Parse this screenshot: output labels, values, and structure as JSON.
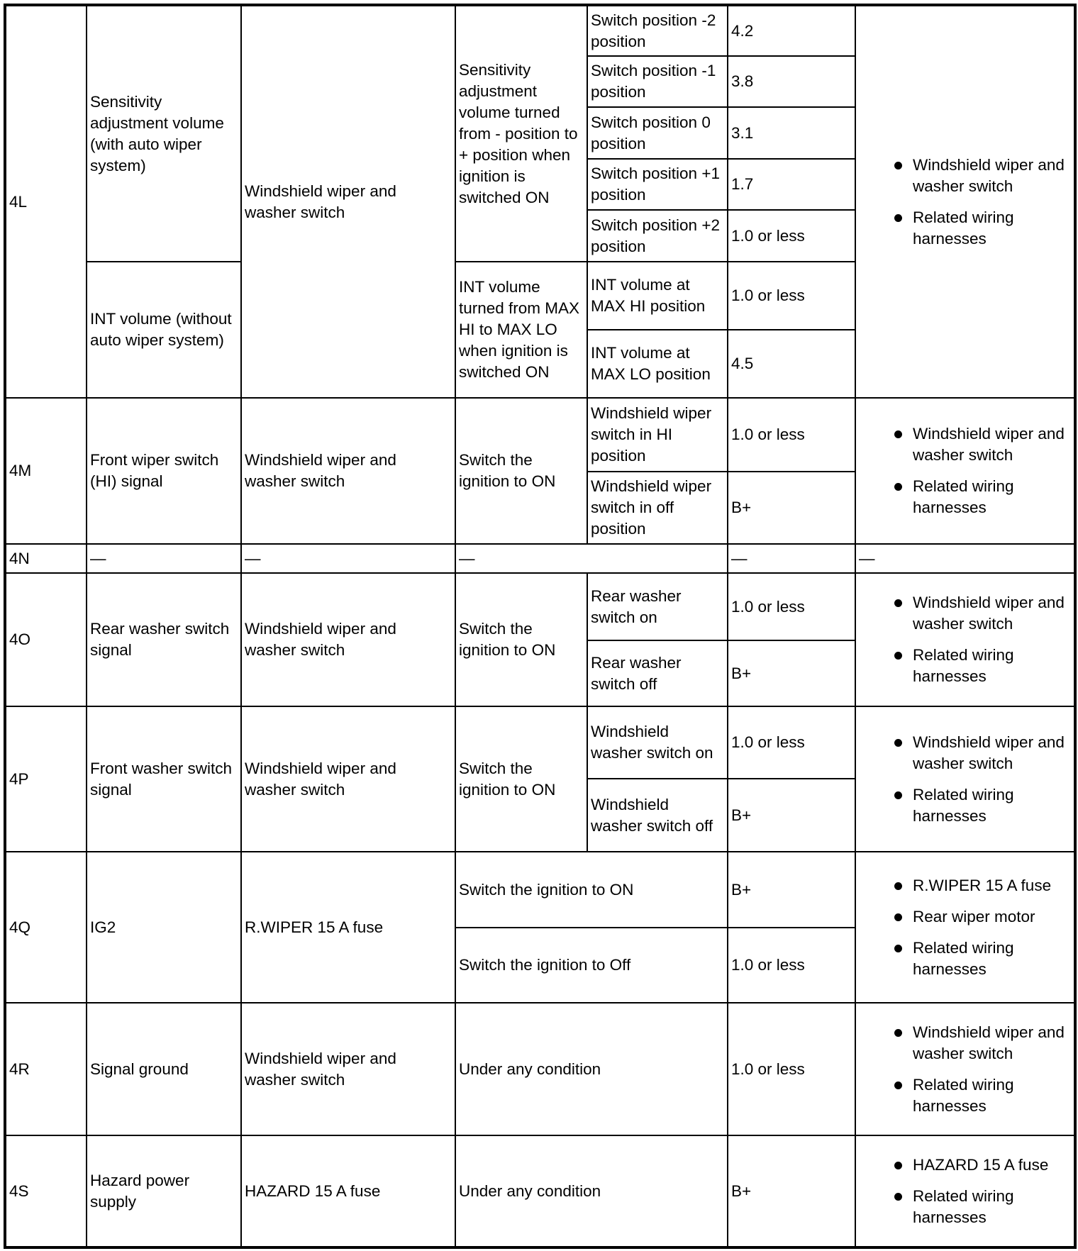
{
  "r4L": {
    "terminal": "4L",
    "item_a": "Sensitivity adjustment volume (with auto wiper system)",
    "item_b": "INT volume (without auto wiper system)",
    "connect": "Windshield wiper and washer switch",
    "cond_a": "Sensitivity adjustment volume turned from - position to + position when ignition is switched ON",
    "sub_a": [
      {
        "c": "Switch position -2 position",
        "v": "4.2"
      },
      {
        "c": "Switch position -1 position",
        "v": "3.8"
      },
      {
        "c": "Switch position 0 position",
        "v": "3.1"
      },
      {
        "c": "Switch position +1 position",
        "v": "1.7"
      },
      {
        "c": "Switch position +2 position",
        "v": "1.0 or less"
      }
    ],
    "cond_b": "INT volume turned from MAX HI to MAX LO when ignition is switched ON",
    "sub_b": [
      {
        "c": "INT volume at MAX HI position",
        "v": "1.0 or less"
      },
      {
        "c": "INT volume at MAX LO position",
        "v": "4.5"
      }
    ],
    "insp": [
      "Windshield wiper and washer switch",
      "Related wiring harnesses"
    ]
  },
  "r4M": {
    "terminal": "4M",
    "item": "Front wiper switch (HI) signal",
    "connect": "Windshield wiper and washer switch",
    "cond": "Switch the ignition to ON",
    "sub": [
      {
        "c": "Windshield wiper switch in HI position",
        "v": "1.0 or less"
      },
      {
        "c": "Windshield wiper switch in off position",
        "v": "B+"
      }
    ],
    "insp": [
      "Windshield wiper and washer switch",
      "Related wiring harnesses"
    ]
  },
  "r4N": {
    "terminal": "4N",
    "dash": "—"
  },
  "r4O": {
    "terminal": "4O",
    "item": "Rear washer switch signal",
    "connect": "Windshield wiper and washer switch",
    "cond": "Switch the ignition to ON",
    "sub": [
      {
        "c": "Rear washer switch on",
        "v": "1.0 or less"
      },
      {
        "c": "Rear washer switch off",
        "v": "B+"
      }
    ],
    "insp": [
      "Windshield wiper and washer switch",
      "Related wiring harnesses"
    ]
  },
  "r4P": {
    "terminal": "4P",
    "item": "Front washer switch signal",
    "connect": "Windshield wiper and washer switch",
    "cond": "Switch the ignition to ON",
    "sub": [
      {
        "c": "Windshield washer switch on",
        "v": "1.0 or less"
      },
      {
        "c": "Windshield washer switch off",
        "v": "B+"
      }
    ],
    "insp": [
      "Windshield wiper and washer switch",
      "Related wiring harnesses"
    ]
  },
  "r4Q": {
    "terminal": "4Q",
    "item": "IG2",
    "connect": "R.WIPER 15 A fuse",
    "sub": [
      {
        "c": "Switch the ignition to ON",
        "v": "B+"
      },
      {
        "c": "Switch the ignition to Off",
        "v": "1.0 or less"
      }
    ],
    "insp": [
      "R.WIPER 15 A fuse",
      "Rear wiper motor",
      "Related wiring harnesses"
    ]
  },
  "r4R": {
    "terminal": "4R",
    "item": "Signal ground",
    "connect": "Windshield wiper and washer switch",
    "cond": "Under any condition",
    "v": "1.0 or less",
    "insp": [
      "Windshield wiper and washer switch",
      "Related wiring harnesses"
    ]
  },
  "r4S": {
    "terminal": "4S",
    "item": "Hazard power supply",
    "connect": "HAZARD 15 A fuse",
    "cond": "Under any condition",
    "v": "B+",
    "insp": [
      "HAZARD 15 A fuse",
      "Related wiring harnesses"
    ]
  }
}
